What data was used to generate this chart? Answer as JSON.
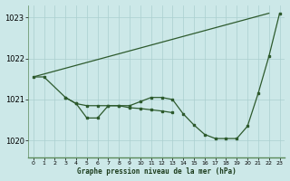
{
  "title": "Graphe pression niveau de la mer (hPa)",
  "background_color": "#cce8e8",
  "grid_color": "#aacfcf",
  "line_color": "#2d5a2d",
  "ylim": [
    1019.6,
    1023.3
  ],
  "yticks": [
    1020,
    1021,
    1022,
    1023
  ],
  "xlim": [
    -0.5,
    23.5
  ],
  "x_labels": [
    "0",
    "1",
    "2",
    "3",
    "4",
    "5",
    "6",
    "7",
    "8",
    "9",
    "10",
    "11",
    "12",
    "13",
    "14",
    "15",
    "16",
    "17",
    "18",
    "19",
    "20",
    "21",
    "22",
    "23"
  ],
  "line_diagonal": [
    [
      0,
      1021.55
    ],
    [
      22,
      1023.1
    ]
  ],
  "line_upper": {
    "x": [
      0,
      1,
      3,
      4,
      5,
      6,
      7,
      8,
      9,
      10,
      11,
      12,
      13
    ],
    "y": [
      1021.55,
      1021.55,
      1021.05,
      1020.9,
      1020.85,
      1020.85,
      1020.85,
      1020.85,
      1020.8,
      1020.78,
      1020.75,
      1020.72,
      1020.68
    ]
  },
  "line_detailed": {
    "x": [
      3,
      4,
      5,
      6,
      7,
      8,
      9,
      10,
      11,
      12,
      13,
      14,
      15,
      16,
      17,
      18,
      19,
      20,
      21,
      22,
      23
    ],
    "y": [
      1021.05,
      1020.9,
      1020.55,
      1020.55,
      1020.85,
      1020.85,
      1020.85,
      1020.95,
      1021.05,
      1021.05,
      1021.0,
      1020.65,
      1020.38,
      1020.15,
      1020.05,
      1020.05,
      1020.05,
      1020.35,
      1021.15,
      1022.05,
      1023.1
    ]
  }
}
